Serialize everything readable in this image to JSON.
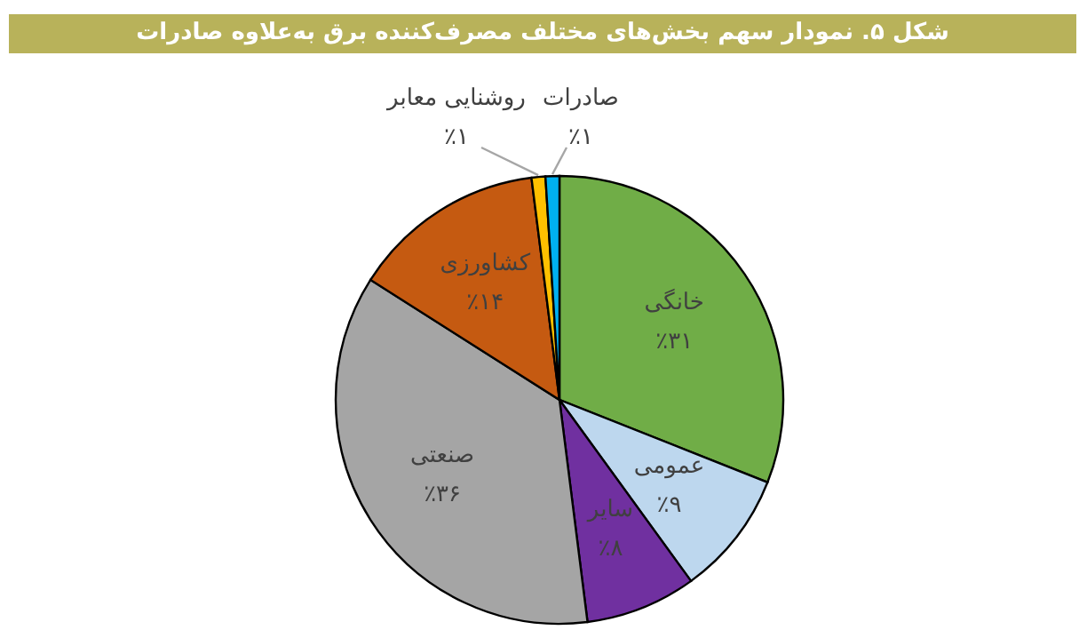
{
  "chart_data": {
    "type": "pie",
    "title": "شکل ۵. نمودار سهم بخش‌های مختلف مصرف‌کننده برق به‌علاوه صادرات",
    "categories": [
      "خانگی",
      "عمومی",
      "سایر",
      "صنعتی",
      "کشاورزی",
      "روشنایی معابر",
      "صادرات"
    ],
    "values": [
      31,
      9,
      8,
      36,
      14,
      1,
      1
    ],
    "colors": [
      "#70ad47",
      "#bdd7ee",
      "#7030a0",
      "#a5a5a5",
      "#c55a11",
      "#ffc000",
      "#00b0f0"
    ],
    "value_labels": [
      "٪۳۱",
      "٪۹",
      "٪۸",
      "٪۳۶",
      "٪۱۴",
      "٪۱",
      "٪۱"
    ]
  }
}
